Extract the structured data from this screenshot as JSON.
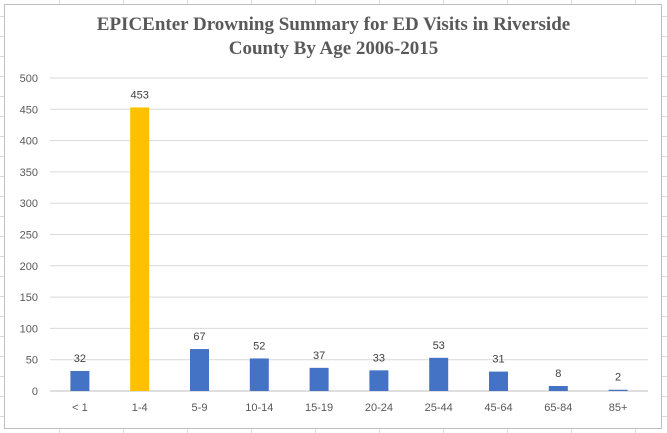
{
  "chart_data": {
    "type": "bar",
    "title_lines": [
      "EPICEnter Drowning Summary for ED Visits in Riverside",
      "County By Age 2006-2015"
    ],
    "categories": [
      "< 1",
      "1-4",
      "5-9",
      "10-14",
      "15-19",
      "20-24",
      "25-44",
      "45-64",
      "65-84",
      "85+"
    ],
    "values": [
      32,
      453,
      67,
      52,
      37,
      33,
      53,
      31,
      8,
      2
    ],
    "yticks": [
      0,
      50,
      100,
      150,
      200,
      250,
      300,
      350,
      400,
      450,
      500
    ],
    "ylim": [
      0,
      500
    ],
    "xlabel": "",
    "ylabel": "",
    "grid": true,
    "legend": "none",
    "colors": {
      "default": "#4472C4",
      "highlight": "#FFC000",
      "gridline": "#d9d9d9",
      "axis": "#bfbfbf"
    },
    "highlight_category": "1-4"
  }
}
